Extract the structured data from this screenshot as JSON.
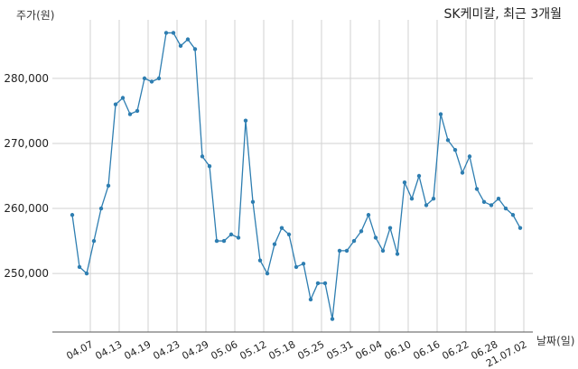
{
  "chart_data": {
    "type": "line",
    "title": "SK케미칼, 최근 3개월",
    "ylabel": "주가(원)",
    "xlabel": "날짜(일)",
    "ylim": [
      241000,
      289000
    ],
    "grid": true,
    "color": "#2e7eb1",
    "y_ticks": [
      250000,
      260000,
      270000,
      280000
    ],
    "y_tick_labels": [
      "250,000",
      "260,000",
      "270,000",
      "280,000"
    ],
    "x_tick_labels": [
      "04.07",
      "04.13",
      "04.19",
      "04.23",
      "04.29",
      "05.06",
      "05.12",
      "05.18",
      "05.25",
      "05.31",
      "06.04",
      "06.10",
      "06.16",
      "06.22",
      "06.28",
      "21.07.02"
    ],
    "x_tick_positions": [
      2.5,
      6.5,
      10.5,
      14.5,
      18.5,
      22.5,
      26.5,
      30.5,
      34.5,
      38.5,
      42.5,
      46.5,
      50.5,
      54.5,
      58.5,
      62.5
    ],
    "values": [
      259000,
      251000,
      250000,
      255000,
      260000,
      263500,
      276000,
      277000,
      274500,
      275000,
      280000,
      279500,
      280000,
      287000,
      287000,
      285000,
      286000,
      284500,
      268000,
      266500,
      255000,
      255000,
      256000,
      255500,
      273500,
      261000,
      252000,
      250000,
      254500,
      257000,
      256000,
      251000,
      251500,
      246000,
      248500,
      248500,
      243000,
      253500,
      253500,
      255000,
      256500,
      259000,
      255500,
      253500,
      257000,
      253000,
      264000,
      261500,
      265000,
      260500,
      261500,
      274500,
      270500,
      269000,
      265500,
      268000,
      263000,
      261000,
      260500,
      261500,
      260000,
      259000,
      257000
    ]
  }
}
